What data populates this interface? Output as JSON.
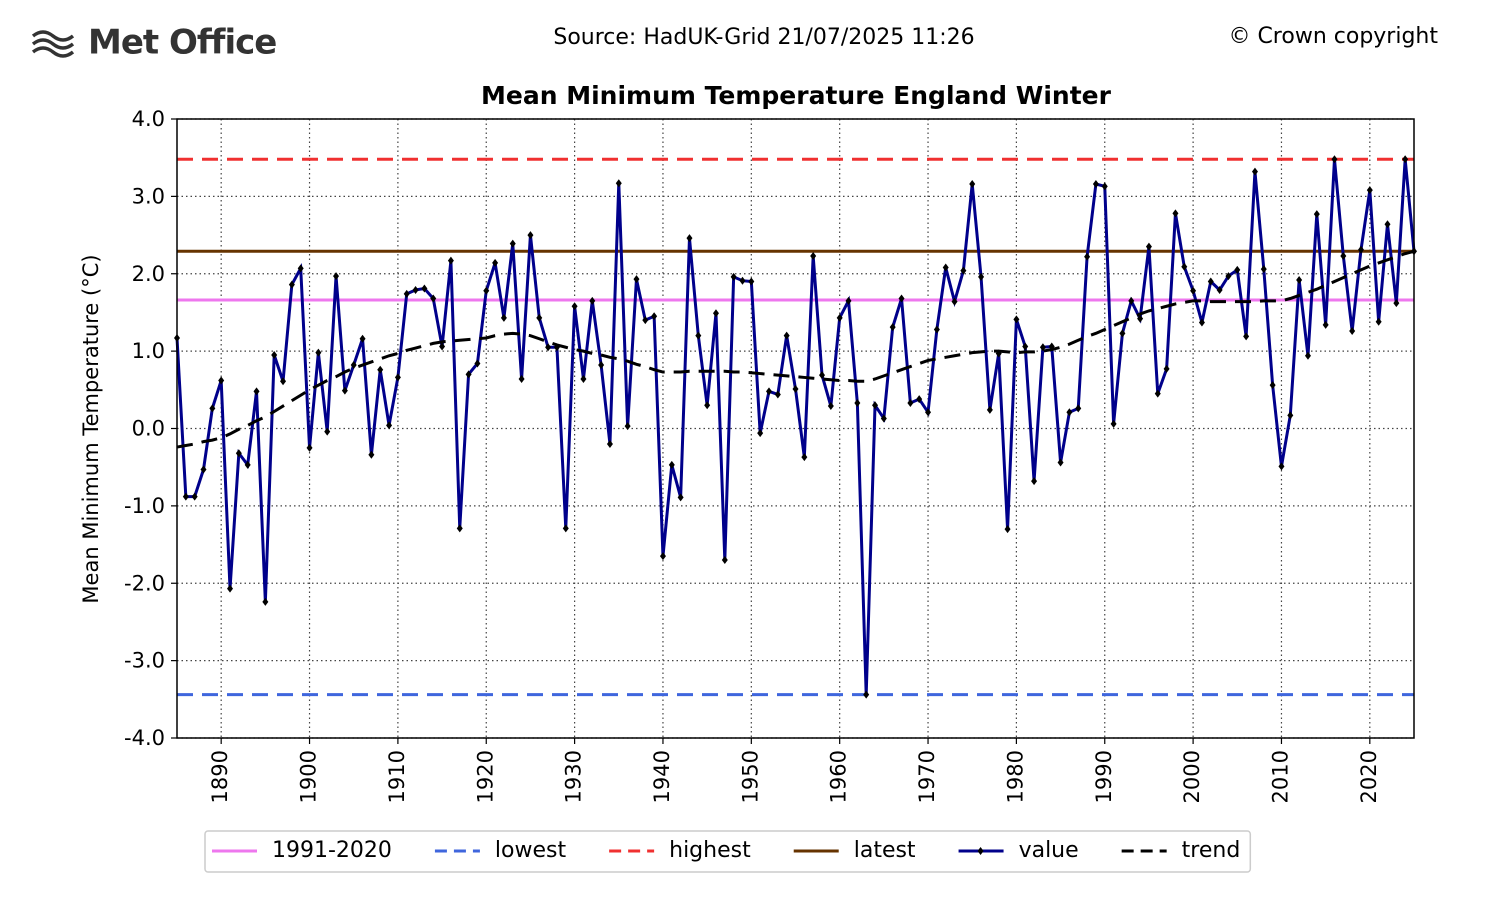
{
  "chart_data": {
    "type": "line",
    "logo": "Met Office",
    "source": "Source: HadUK-Grid 21/07/2025 11:26",
    "copyright": "© Crown copyright",
    "title": "Mean Minimum Temperature England Winter",
    "y_label": "Mean Minimum Temperature (°C)",
    "xlim": [
      1885,
      2025
    ],
    "ylim": [
      -4,
      4
    ],
    "xticks": [
      1890,
      1900,
      1910,
      1920,
      1930,
      1940,
      1950,
      1960,
      1970,
      1980,
      1990,
      2000,
      2010,
      2020
    ],
    "yticks": [
      {
        "value": 4,
        "label": "4.0"
      },
      {
        "value": 3,
        "label": "3.0"
      },
      {
        "value": 2,
        "label": "2.0"
      },
      {
        "value": 1,
        "label": "1.0"
      },
      {
        "value": 0,
        "label": "0.0"
      },
      {
        "value": -1,
        "label": "-1.0"
      },
      {
        "value": -2,
        "label": "-2.0"
      },
      {
        "value": -3,
        "label": "-3.0"
      },
      {
        "value": -4,
        "label": "-4.0"
      }
    ],
    "grid": true,
    "legend": "bottom",
    "hlines": [
      {
        "name": "1991-2020",
        "value": 1.66,
        "color": "#ee77ee",
        "style": "solid"
      },
      {
        "name": "lowest",
        "value": -3.44,
        "color": "#3f66dd",
        "style": "dashed"
      },
      {
        "name": "highest",
        "value": 3.48,
        "color": "#f03030",
        "style": "dashed"
      },
      {
        "name": "latest",
        "value": 2.29,
        "color": "#663300",
        "style": "solid"
      }
    ],
    "x": [
      1885,
      1886,
      1887,
      1888,
      1889,
      1890,
      1891,
      1892,
      1893,
      1894,
      1895,
      1896,
      1897,
      1898,
      1899,
      1900,
      1901,
      1902,
      1903,
      1904,
      1905,
      1906,
      1907,
      1908,
      1909,
      1910,
      1911,
      1912,
      1913,
      1914,
      1915,
      1916,
      1917,
      1918,
      1919,
      1920,
      1921,
      1922,
      1923,
      1924,
      1925,
      1926,
      1927,
      1928,
      1929,
      1930,
      1931,
      1932,
      1933,
      1934,
      1935,
      1936,
      1937,
      1938,
      1939,
      1940,
      1941,
      1942,
      1943,
      1944,
      1945,
      1946,
      1947,
      1948,
      1949,
      1950,
      1951,
      1952,
      1953,
      1954,
      1955,
      1956,
      1957,
      1958,
      1959,
      1960,
      1961,
      1962,
      1963,
      1964,
      1965,
      1966,
      1967,
      1968,
      1969,
      1970,
      1971,
      1972,
      1973,
      1974,
      1975,
      1976,
      1977,
      1978,
      1979,
      1980,
      1981,
      1982,
      1983,
      1984,
      1985,
      1986,
      1987,
      1988,
      1989,
      1990,
      1991,
      1992,
      1993,
      1994,
      1995,
      1996,
      1997,
      1998,
      1999,
      2000,
      2001,
      2002,
      2003,
      2004,
      2005,
      2006,
      2007,
      2008,
      2009,
      2010,
      2011,
      2012,
      2013,
      2014,
      2015,
      2016,
      2017,
      2018,
      2019,
      2020,
      2021,
      2022,
      2023,
      2024,
      2025
    ],
    "series": [
      {
        "name": "value",
        "color": "#00008b",
        "style": "solid",
        "markers": true,
        "values": [
          1.17,
          -0.88,
          -0.88,
          -0.53,
          0.26,
          0.62,
          -2.07,
          -0.32,
          -0.47,
          0.48,
          -2.24,
          0.95,
          0.61,
          1.86,
          2.07,
          -0.25,
          0.98,
          -0.04,
          1.97,
          0.49,
          0.82,
          1.16,
          -0.34,
          0.76,
          0.04,
          0.66,
          1.74,
          1.79,
          1.81,
          1.68,
          1.06,
          2.17,
          -1.29,
          0.7,
          0.84,
          1.78,
          2.14,
          1.43,
          2.39,
          0.64,
          2.5,
          1.43,
          1.05,
          1.05,
          -1.29,
          1.58,
          0.64,
          1.65,
          0.82,
          -0.2,
          3.17,
          0.03,
          1.93,
          1.4,
          1.45,
          -1.65,
          -0.47,
          -0.89,
          2.46,
          1.2,
          0.3,
          1.49,
          -1.7,
          1.96,
          1.91,
          1.9,
          -0.06,
          0.48,
          0.44,
          1.2,
          0.51,
          -0.37,
          2.23,
          0.69,
          0.29,
          1.43,
          1.65,
          0.33,
          -3.44,
          0.3,
          0.13,
          1.31,
          1.68,
          0.33,
          0.38,
          0.21,
          1.28,
          2.08,
          1.64,
          2.04,
          3.16,
          1.96,
          0.24,
          0.97,
          -1.3,
          1.41,
          1.06,
          -0.68,
          1.05,
          1.06,
          -0.44,
          0.21,
          0.26,
          2.22,
          3.16,
          3.13,
          0.06,
          1.23,
          1.65,
          1.42,
          2.35,
          0.45,
          0.77,
          2.78,
          2.09,
          1.78,
          1.37,
          1.9,
          1.79,
          1.97,
          2.05,
          1.19,
          3.32,
          2.06,
          0.56,
          -0.49,
          0.17,
          1.92,
          0.94,
          2.77,
          1.34,
          3.48,
          2.23,
          1.26,
          2.31,
          3.08,
          1.38,
          2.64,
          1.62,
          3.48,
          2.29
        ]
      },
      {
        "name": "trend",
        "color": "#000000",
        "style": "dashed",
        "markers": false,
        "values": [
          -0.24,
          -0.22,
          -0.2,
          -0.17,
          -0.15,
          -0.12,
          -0.07,
          -0.01,
          0.04,
          0.1,
          0.15,
          0.22,
          0.29,
          0.36,
          0.43,
          0.5,
          0.56,
          0.62,
          0.67,
          0.73,
          0.78,
          0.82,
          0.86,
          0.9,
          0.94,
          0.97,
          1.01,
          1.04,
          1.07,
          1.1,
          1.12,
          1.13,
          1.14,
          1.15,
          1.16,
          1.17,
          1.2,
          1.22,
          1.23,
          1.22,
          1.2,
          1.16,
          1.12,
          1.08,
          1.05,
          1.02,
          1.0,
          0.97,
          0.95,
          0.92,
          0.9,
          0.87,
          0.83,
          0.8,
          0.76,
          0.73,
          0.73,
          0.73,
          0.74,
          0.74,
          0.74,
          0.74,
          0.74,
          0.73,
          0.73,
          0.72,
          0.71,
          0.7,
          0.69,
          0.68,
          0.67,
          0.66,
          0.65,
          0.64,
          0.63,
          0.62,
          0.62,
          0.61,
          0.61,
          0.64,
          0.68,
          0.72,
          0.76,
          0.8,
          0.84,
          0.88,
          0.9,
          0.92,
          0.94,
          0.96,
          0.98,
          0.99,
          1.0,
          1.0,
          0.99,
          0.98,
          0.99,
          0.99,
          1.0,
          1.02,
          1.05,
          1.09,
          1.14,
          1.19,
          1.23,
          1.28,
          1.33,
          1.38,
          1.43,
          1.48,
          1.52,
          1.55,
          1.58,
          1.61,
          1.63,
          1.65,
          1.65,
          1.64,
          1.64,
          1.64,
          1.64,
          1.64,
          1.64,
          1.65,
          1.65,
          1.65,
          1.68,
          1.72,
          1.76,
          1.8,
          1.85,
          1.9,
          1.95,
          2.0,
          2.05,
          2.1,
          2.14,
          2.18,
          2.22,
          2.26,
          2.29
        ]
      }
    ]
  }
}
